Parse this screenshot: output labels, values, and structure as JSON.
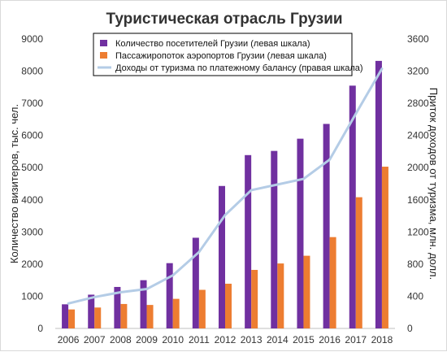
{
  "chart_data": {
    "type": "bar",
    "title": "Туристическая отрасль Грузии",
    "categories": [
      "2006",
      "2007",
      "2008",
      "2009",
      "2010",
      "2011",
      "2012",
      "2013",
      "2014",
      "2015",
      "2016",
      "2017",
      "2018"
    ],
    "series": [
      {
        "name": "Количество посетителей Грузии (левая шкала)",
        "type": "bar",
        "axis": "left",
        "color": "#7030a0",
        "values": [
          750,
          1050,
          1290,
          1500,
          2030,
          2820,
          4430,
          5390,
          5520,
          5900,
          6360,
          7550,
          8320
        ]
      },
      {
        "name": "Пассажиропоток аэропортов Грузии (левая шкала)",
        "type": "bar",
        "axis": "left",
        "color": "#ed7d31",
        "values": [
          590,
          650,
          760,
          730,
          920,
          1200,
          1390,
          1820,
          2020,
          2260,
          2840,
          4080,
          5030
        ]
      },
      {
        "name": "Доходы от туризма по платежному балансу (правая шкала)",
        "type": "line",
        "axis": "right",
        "color": "#b4cce6",
        "values": [
          310,
          390,
          450,
          490,
          660,
          950,
          1410,
          1720,
          1790,
          1860,
          2100,
          2670,
          3230
        ]
      }
    ],
    "ylabel": "Количество визитеров, тыс. чел.",
    "ylabel_right": "Приток доходов от туризма, млн. долл.",
    "ylim": [
      0,
      9000
    ],
    "ylim_right": [
      0,
      3600
    ],
    "yticks": [
      "0",
      "1000",
      "2000",
      "3000",
      "4000",
      "5000",
      "6000",
      "7000",
      "8000",
      "9000"
    ],
    "yticks_right": [
      "0",
      "400",
      "800",
      "1200",
      "1600",
      "2000",
      "2400",
      "2800",
      "3200",
      "3600"
    ],
    "grid": false,
    "legend_position": "top-center"
  }
}
